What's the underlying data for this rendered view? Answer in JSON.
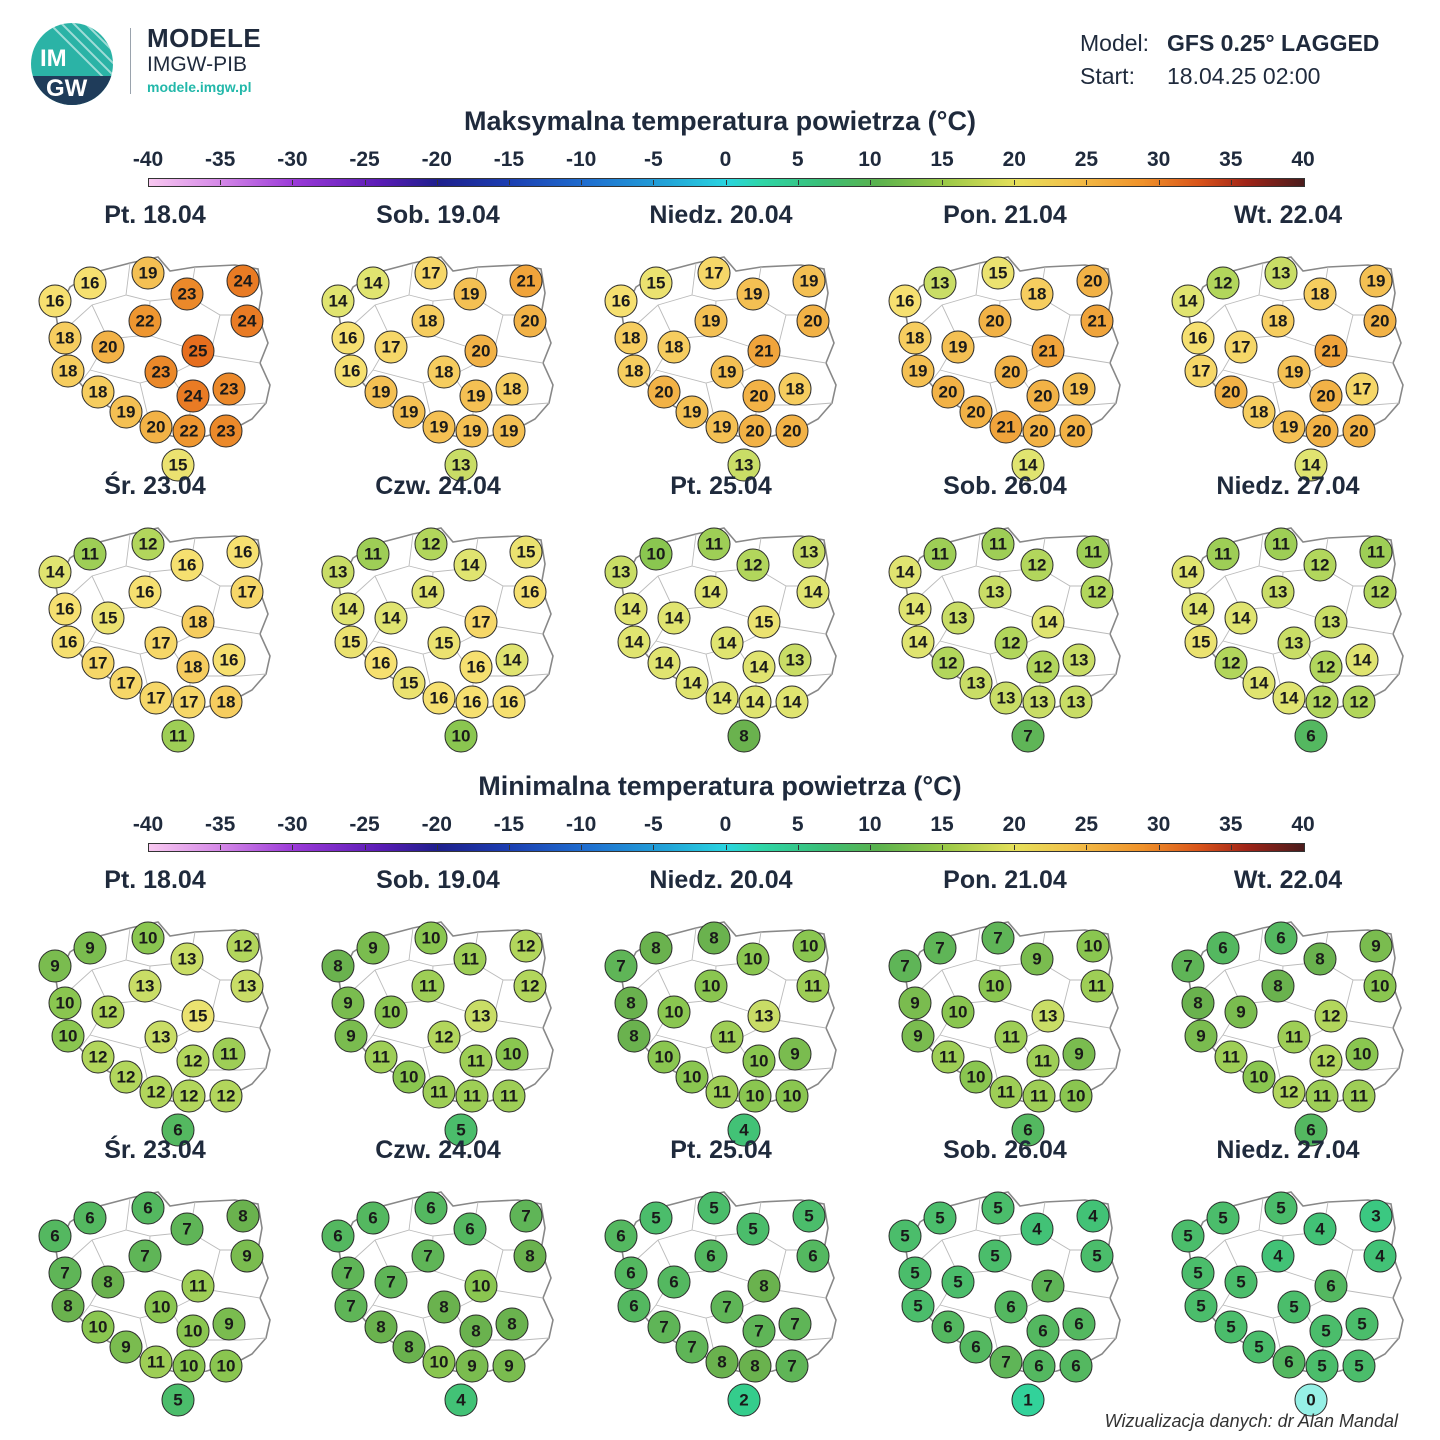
{
  "brand": {
    "title": "MODELE",
    "subtitle": "IMGW-PIB",
    "url": "modele.imgw.pl",
    "logo_text": "IMGW"
  },
  "model": {
    "model_label": "Model:",
    "model_value": "GFS 0.25° LAGGED",
    "start_label": "Start:",
    "start_value": "18.04.25  02:00"
  },
  "scale_ticks": [
    "-40",
    "-35",
    "-30",
    "-25",
    "-20",
    "-15",
    "-10",
    "-5",
    "0",
    "5",
    "10",
    "15",
    "20",
    "25",
    "30",
    "35",
    "40"
  ],
  "sections": [
    {
      "title": "Maksymalna temperatura powietrza (°C)",
      "days": [
        {
          "label": "Pt. 18.04",
          "values": [
            16,
            19,
            24,
            16,
            23,
            24,
            18,
            22,
            20,
            25,
            18,
            23,
            23,
            18,
            24,
            19,
            20,
            22,
            23,
            15
          ]
        },
        {
          "label": "Sob. 19.04",
          "values": [
            14,
            17,
            21,
            14,
            19,
            20,
            16,
            18,
            17,
            20,
            16,
            18,
            18,
            19,
            19,
            19,
            19,
            19,
            19,
            13
          ]
        },
        {
          "label": "Niedz. 20.04",
          "values": [
            15,
            17,
            19,
            16,
            19,
            20,
            18,
            19,
            18,
            21,
            18,
            19,
            18,
            20,
            20,
            19,
            19,
            20,
            20,
            13
          ]
        },
        {
          "label": "Pon. 21.04",
          "values": [
            13,
            15,
            20,
            16,
            18,
            21,
            18,
            20,
            19,
            21,
            19,
            20,
            19,
            20,
            20,
            20,
            21,
            20,
            20,
            14
          ]
        },
        {
          "label": "Wt. 22.04",
          "values": [
            12,
            13,
            19,
            14,
            18,
            20,
            16,
            18,
            17,
            21,
            17,
            19,
            17,
            20,
            20,
            18,
            19,
            20,
            20,
            14
          ]
        },
        {
          "label": "Śr. 23.04",
          "values": [
            11,
            12,
            16,
            14,
            16,
            17,
            16,
            16,
            15,
            18,
            16,
            17,
            16,
            17,
            18,
            17,
            17,
            17,
            18,
            11
          ]
        },
        {
          "label": "Czw. 24.04",
          "values": [
            11,
            12,
            15,
            13,
            14,
            16,
            14,
            14,
            14,
            17,
            15,
            15,
            14,
            16,
            16,
            15,
            16,
            16,
            16,
            10
          ]
        },
        {
          "label": "Pt. 25.04",
          "values": [
            10,
            11,
            13,
            13,
            12,
            14,
            14,
            14,
            14,
            15,
            14,
            14,
            13,
            14,
            14,
            14,
            14,
            14,
            14,
            8
          ]
        },
        {
          "label": "Sob. 26.04",
          "values": [
            11,
            11,
            11,
            14,
            12,
            12,
            14,
            13,
            13,
            14,
            14,
            12,
            13,
            12,
            12,
            13,
            13,
            13,
            13,
            7
          ]
        },
        {
          "label": "Niedz. 27.04",
          "values": [
            11,
            11,
            11,
            14,
            12,
            12,
            14,
            13,
            14,
            13,
            15,
            13,
            14,
            12,
            12,
            14,
            14,
            12,
            12,
            6
          ]
        }
      ]
    },
    {
      "title": "Minimalna temperatura powietrza (°C)",
      "days": [
        {
          "label": "Pt. 18.04",
          "values": [
            9,
            10,
            12,
            9,
            13,
            13,
            10,
            13,
            12,
            15,
            10,
            13,
            11,
            12,
            12,
            12,
            12,
            12,
            12,
            6
          ]
        },
        {
          "label": "Sob. 19.04",
          "values": [
            9,
            10,
            12,
            8,
            11,
            12,
            9,
            11,
            10,
            13,
            9,
            12,
            10,
            11,
            11,
            10,
            11,
            11,
            11,
            5
          ]
        },
        {
          "label": "Niedz. 20.04",
          "values": [
            8,
            8,
            10,
            7,
            10,
            11,
            8,
            10,
            10,
            13,
            8,
            11,
            9,
            10,
            10,
            10,
            11,
            10,
            10,
            4
          ]
        },
        {
          "label": "Pon. 21.04",
          "values": [
            7,
            7,
            10,
            7,
            9,
            11,
            9,
            10,
            10,
            13,
            9,
            11,
            9,
            11,
            11,
            10,
            11,
            11,
            10,
            6
          ]
        },
        {
          "label": "Wt. 22.04",
          "values": [
            6,
            6,
            9,
            7,
            8,
            10,
            8,
            8,
            9,
            12,
            9,
            11,
            10,
            11,
            12,
            10,
            12,
            11,
            11,
            6
          ]
        },
        {
          "label": "Śr. 23.04",
          "values": [
            6,
            6,
            8,
            6,
            7,
            9,
            7,
            7,
            8,
            11,
            8,
            10,
            9,
            10,
            10,
            9,
            11,
            10,
            10,
            5
          ]
        },
        {
          "label": "Czw. 24.04",
          "values": [
            6,
            6,
            7,
            6,
            6,
            8,
            7,
            7,
            7,
            10,
            7,
            8,
            8,
            8,
            8,
            8,
            10,
            9,
            9,
            4
          ]
        },
        {
          "label": "Pt. 25.04",
          "values": [
            5,
            5,
            5,
            6,
            5,
            6,
            6,
            6,
            6,
            8,
            6,
            7,
            7,
            7,
            7,
            7,
            8,
            8,
            7,
            2
          ]
        },
        {
          "label": "Sob. 26.04",
          "values": [
            5,
            5,
            4,
            5,
            4,
            5,
            5,
            5,
            5,
            7,
            5,
            6,
            6,
            6,
            6,
            6,
            7,
            6,
            6,
            1
          ]
        },
        {
          "label": "Niedz. 27.04",
          "values": [
            5,
            5,
            3,
            5,
            4,
            4,
            5,
            4,
            5,
            6,
            5,
            5,
            5,
            5,
            5,
            5,
            6,
            5,
            5,
            0
          ]
        }
      ]
    }
  ],
  "credit": "Wizualizacja danych: dr Alan Mandal"
}
